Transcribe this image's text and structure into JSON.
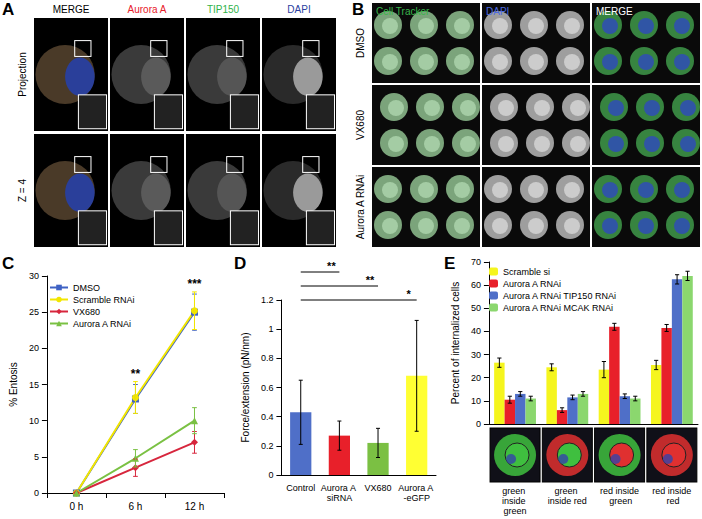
{
  "panel_labels": [
    "A",
    "B",
    "C",
    "D",
    "E"
  ],
  "image_panels": {
    "A": {
      "columns": [
        {
          "text": "MERGE",
          "color": "#000000"
        },
        {
          "text": "Aurora A",
          "color": "#e8202a"
        },
        {
          "text": "TIP150",
          "color": "#2fb34a"
        },
        {
          "text": "DAPI",
          "color": "#2b3fa0"
        }
      ],
      "rows": [
        "Projection",
        "Z = 4"
      ]
    },
    "B": {
      "columns": [
        {
          "text": "Cell Tracker",
          "color": "#39b54a"
        },
        {
          "text": "DAPI",
          "color": "#4a6be0"
        },
        {
          "text": "MERGE",
          "color": "#ffffff"
        }
      ],
      "rows": [
        "DMSO",
        "VX680",
        "Aurora A RNAi"
      ]
    }
  },
  "chart_data": [
    {
      "type": "line",
      "categories": [
        "0 h",
        "6 h",
        "12 h"
      ],
      "y_label": "% Entosis",
      "ylim": [
        0,
        30
      ],
      "yticks": [
        0,
        5,
        10,
        15,
        20,
        25,
        30
      ],
      "grid": false,
      "legend": "upper left",
      "series": [
        {
          "name": "DMSO",
          "color": "#3f62c4",
          "marker": "square",
          "values": [
            0,
            13,
            25
          ],
          "errors": [
            0,
            2,
            2.5
          ]
        },
        {
          "name": "Scramble RNAi",
          "color": "#f2e600",
          "marker": "circle",
          "values": [
            0,
            13.2,
            25.2
          ],
          "errors": [
            0,
            2.2,
            2.6
          ]
        },
        {
          "name": "VX680",
          "color": "#d7263d",
          "marker": "diamond",
          "values": [
            0,
            3.5,
            7
          ],
          "errors": [
            0,
            1.2,
            1.5
          ]
        },
        {
          "name": "Aurora A RNAi",
          "color": "#7ac143",
          "marker": "triangle",
          "values": [
            0,
            4.8,
            10
          ],
          "errors": [
            0,
            1.2,
            1.8
          ]
        }
      ],
      "annotations": [
        {
          "x": "6 h",
          "text": "**"
        },
        {
          "x": "12 h",
          "text": "***"
        }
      ]
    },
    {
      "type": "bar",
      "categories": [
        "Control",
        "Aurora A siRNA",
        "VX680",
        "Aurora A -eGFP"
      ],
      "values": [
        0.43,
        0.27,
        0.22,
        0.68
      ],
      "errors": [
        0.22,
        0.1,
        0.1,
        0.38
      ],
      "colors": [
        "#4f6fc8",
        "#e8202a",
        "#7bc043",
        "#ffff33"
      ],
      "y_label": "Force/extension (pN/nm)",
      "ylim": [
        0,
        1.2
      ],
      "yticks": [
        0,
        0.2,
        0.4,
        0.6,
        0.8,
        1,
        1.2
      ],
      "grid": false,
      "comparisons": [
        {
          "from": "Control",
          "to": "Aurora A siRNA",
          "text": "**"
        },
        {
          "from": "Control",
          "to": "VX680",
          "text": "**"
        },
        {
          "from": "Control",
          "to": "Aurora A -eGFP",
          "text": "*"
        }
      ]
    },
    {
      "type": "bar",
      "categories": [
        "green inside green",
        "green inside red",
        "red inside green",
        "red inside red"
      ],
      "y_label": "Percent of internalized cells",
      "ylim": [
        0,
        70
      ],
      "yticks": [
        0,
        10,
        20,
        30,
        40,
        50,
        60,
        70
      ],
      "grid": false,
      "legend": "upper left",
      "series": [
        {
          "name": "Scramble si",
          "color": "#f5f51e",
          "values": [
            26.5,
            24.5,
            23.5,
            25.5
          ],
          "errors": [
            2,
            1.5,
            3.5,
            2
          ]
        },
        {
          "name": "Aurora A RNAi",
          "color": "#e8202a",
          "values": [
            10.5,
            6,
            42,
            41.5
          ],
          "errors": [
            1.5,
            1,
            1.5,
            1.5
          ]
        },
        {
          "name": "Aurora A RNAi TIP150 RNAi",
          "color": "#4f6fc8",
          "values": [
            13,
            11.5,
            12,
            62.5
          ],
          "errors": [
            1,
            1,
            1,
            2
          ]
        },
        {
          "name": "Aurora A RNAi MCAK RNAi",
          "color": "#8bd76e",
          "values": [
            11,
            13,
            11,
            64
          ],
          "errors": [
            1,
            1,
            1,
            2
          ]
        }
      ]
    }
  ]
}
